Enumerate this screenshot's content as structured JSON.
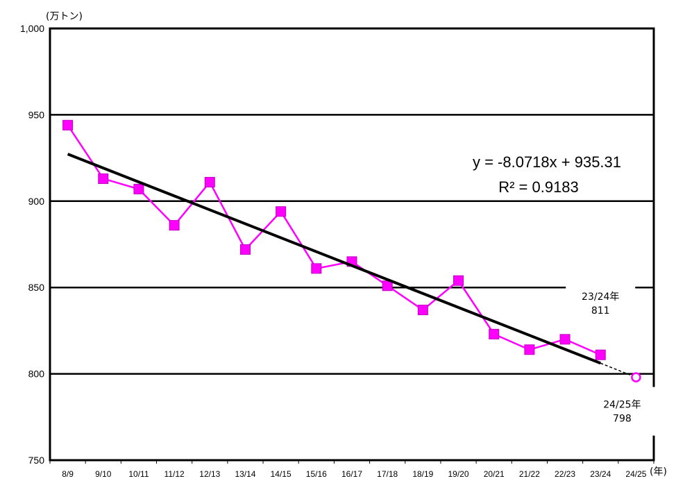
{
  "chart_data": {
    "type": "line",
    "y_unit_label": "(万トン)",
    "x_unit_label": "(年)",
    "categories": [
      "8/9",
      "9/10",
      "10/11",
      "11/12",
      "12/13",
      "13/14",
      "14/15",
      "15/16",
      "16/17",
      "17/18",
      "18/19",
      "19/20",
      "20/21",
      "21/22",
      "22/23",
      "23/24",
      "24/25"
    ],
    "series": [
      {
        "values": [
          944,
          913,
          907,
          886,
          911,
          872,
          894,
          861,
          865,
          851,
          837,
          854,
          823,
          814,
          820,
          811,
          null
        ]
      }
    ],
    "forecast": {
      "category": "24/25",
      "value": 798
    },
    "trendline": {
      "slope": -8.0718,
      "intercept": 935.31
    },
    "equation_label": "y = -8.0718x + 935.31",
    "r2_label": "R² = 0.9183",
    "annotations": [
      {
        "line1": "23/24年",
        "line2": "811"
      },
      {
        "line1": "24/25年",
        "line2": "798"
      }
    ],
    "ylim": [
      750,
      1000
    ],
    "yticks": [
      "1,000",
      "950",
      "900",
      "850",
      "800",
      "750"
    ],
    "ytick_values": [
      1000,
      950,
      900,
      850,
      800,
      750
    ],
    "gridlines": true,
    "colors": {
      "series": "#ff00ff",
      "marker": "#ff00ff",
      "trend": "#000000"
    }
  }
}
